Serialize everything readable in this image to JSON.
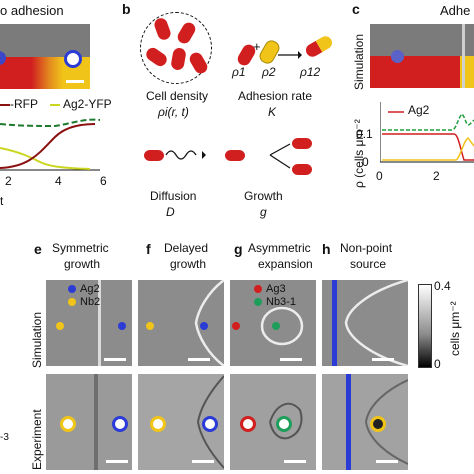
{
  "panel_a": {
    "title_fragment": "o adhesion",
    "legend_red": "-RFP",
    "legend_yellow": "Ag2-YFP",
    "x_ticks": [
      "2",
      "4",
      "6"
    ],
    "axis_fragment": "t"
  },
  "panel_b": {
    "letter": "b",
    "density_label": "Cell density",
    "density_symbol": "ρi(r, t)",
    "adhesion_label": "Adhesion rate",
    "adhesion_symbol": "K",
    "rho1": "ρ1",
    "rho2": "ρ2",
    "rho12": "ρ12",
    "plus": "+",
    "diffusion_label": "Diffusion",
    "diffusion_symbol": "D",
    "growth_label": "Growth",
    "growth_symbol": "g"
  },
  "panel_c": {
    "letter": "c",
    "title_fragment": "Adhe",
    "sim_label": "Simulation",
    "legend": "Ag2",
    "ylabel": "ρ (cells μm⁻²",
    "y_ticks": [
      "0.1",
      "0"
    ],
    "x_ticks": [
      "0",
      "2"
    ]
  },
  "bottom": {
    "panels": [
      {
        "letter": "e",
        "title1": "Symmetric",
        "title2": "growth"
      },
      {
        "letter": "f",
        "title1": "Delayed",
        "title2": "growth"
      },
      {
        "letter": "g",
        "title1": "Asymmetric",
        "title2": "expansion"
      },
      {
        "letter": "h",
        "title1": "Non-point",
        "title2": "source"
      }
    ],
    "legend_e": {
      "blue": "Ag2",
      "yellow": "Nb2"
    },
    "legend_g": {
      "red": "Ag3",
      "green": "Nb3-1"
    },
    "row_sim": "Simulation",
    "row_exp": "Experiment",
    "colorbar_max": "0.4",
    "colorbar_min": "0",
    "colorbar_label": "cells μm⁻²",
    "left_fragment": "-3"
  },
  "colors": {
    "red_cell": "#d11f1f",
    "yellow": "#f0c419",
    "blue": "#2b3bd6",
    "green": "#1e9e5a",
    "sim_gray": "#8c8c8c"
  }
}
